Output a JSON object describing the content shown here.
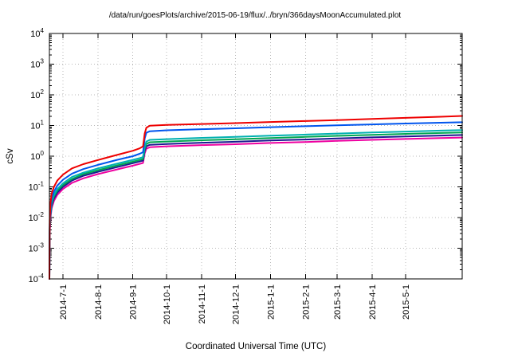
{
  "chart_data": {
    "type": "line",
    "title": "/data/run/goesPlots/archive/2015-06-19/flux/../bryn/366daysMoonAccumulated.plot",
    "xlabel": "Coordinated Universal Time (UTC)",
    "ylabel": "cSv",
    "y_scale": "log10",
    "ylim": [
      0.0001,
      10000
    ],
    "y_tick_exponents": [
      -4,
      -3,
      -2,
      -1,
      0,
      1,
      2,
      3,
      4
    ],
    "x_range_days": [
      0,
      366
    ],
    "grid": true,
    "legend_position": "none",
    "colors": {
      "grid": "#b8b8b8",
      "axis": "#000000",
      "background": "#ffffff"
    },
    "x_ticks": [
      {
        "label": "2014-7-1",
        "day": 12
      },
      {
        "label": "2014-8-1",
        "day": 43
      },
      {
        "label": "2014-9-1",
        "day": 74
      },
      {
        "label": "2014-10-1",
        "day": 104
      },
      {
        "label": "2014-11-1",
        "day": 135
      },
      {
        "label": "2014-12-1",
        "day": 165
      },
      {
        "label": "2015-1-1",
        "day": 196
      },
      {
        "label": "2015-2-1",
        "day": 227
      },
      {
        "label": "2015-3-1",
        "day": 255
      },
      {
        "label": "2015-4-1",
        "day": 286
      },
      {
        "label": "2015-5-1",
        "day": 316
      }
    ],
    "series": [
      {
        "name": "red",
        "color": "#ee0000",
        "points": [
          [
            0,
            0.0001
          ],
          [
            0.3,
            0.008
          ],
          [
            1,
            0.03
          ],
          [
            2,
            0.06
          ],
          [
            4,
            0.1
          ],
          [
            7,
            0.16
          ],
          [
            12,
            0.25
          ],
          [
            20,
            0.4
          ],
          [
            30,
            0.55
          ],
          [
            43,
            0.75
          ],
          [
            60,
            1.1
          ],
          [
            74,
            1.5
          ],
          [
            80,
            1.8
          ],
          [
            83,
            2.1
          ],
          [
            84.5,
            5.5
          ],
          [
            86,
            8.5
          ],
          [
            89,
            9.8
          ],
          [
            104,
            10.4
          ],
          [
            135,
            11.2
          ],
          [
            165,
            12.0
          ],
          [
            196,
            13.0
          ],
          [
            227,
            14.0
          ],
          [
            255,
            15.0
          ],
          [
            286,
            16.3
          ],
          [
            316,
            17.8
          ],
          [
            347,
            19.3
          ],
          [
            366,
            20.5
          ]
        ]
      },
      {
        "name": "blue",
        "color": "#0055ee",
        "points": [
          [
            0,
            0.0001
          ],
          [
            0.3,
            0.006
          ],
          [
            1,
            0.02
          ],
          [
            2,
            0.042
          ],
          [
            4,
            0.07
          ],
          [
            7,
            0.11
          ],
          [
            12,
            0.17
          ],
          [
            20,
            0.27
          ],
          [
            30,
            0.38
          ],
          [
            43,
            0.52
          ],
          [
            60,
            0.76
          ],
          [
            74,
            1.0
          ],
          [
            80,
            1.2
          ],
          [
            83,
            1.35
          ],
          [
            84.5,
            3.8
          ],
          [
            86,
            5.8
          ],
          [
            89,
            6.5
          ],
          [
            104,
            7.0
          ],
          [
            135,
            7.6
          ],
          [
            165,
            8.1
          ],
          [
            196,
            8.8
          ],
          [
            227,
            9.5
          ],
          [
            255,
            10.1
          ],
          [
            286,
            10.9
          ],
          [
            316,
            11.6
          ],
          [
            347,
            12.3
          ],
          [
            366,
            12.8
          ]
        ]
      },
      {
        "name": "cyan",
        "color": "#00b0b0",
        "points": [
          [
            0,
            0.0001
          ],
          [
            0.3,
            0.005
          ],
          [
            1,
            0.016
          ],
          [
            2,
            0.032
          ],
          [
            4,
            0.055
          ],
          [
            7,
            0.085
          ],
          [
            12,
            0.13
          ],
          [
            20,
            0.21
          ],
          [
            30,
            0.29
          ],
          [
            43,
            0.4
          ],
          [
            60,
            0.57
          ],
          [
            74,
            0.76
          ],
          [
            80,
            0.86
          ],
          [
            83,
            0.93
          ],
          [
            84.5,
            2.1
          ],
          [
            86,
            3.0
          ],
          [
            89,
            3.4
          ],
          [
            104,
            3.6
          ],
          [
            135,
            3.95
          ],
          [
            165,
            4.25
          ],
          [
            196,
            4.65
          ],
          [
            227,
            5.05
          ],
          [
            255,
            5.45
          ],
          [
            286,
            5.9
          ],
          [
            316,
            6.35
          ],
          [
            347,
            6.8
          ],
          [
            366,
            7.1
          ]
        ]
      },
      {
        "name": "green",
        "color": "#00a550",
        "points": [
          [
            0,
            0.0001
          ],
          [
            0.3,
            0.0045
          ],
          [
            1,
            0.014
          ],
          [
            2,
            0.028
          ],
          [
            4,
            0.048
          ],
          [
            7,
            0.075
          ],
          [
            12,
            0.115
          ],
          [
            20,
            0.18
          ],
          [
            30,
            0.26
          ],
          [
            43,
            0.35
          ],
          [
            60,
            0.5
          ],
          [
            74,
            0.66
          ],
          [
            80,
            0.75
          ],
          [
            83,
            0.81
          ],
          [
            84.5,
            1.75
          ],
          [
            86,
            2.5
          ],
          [
            89,
            2.85
          ],
          [
            104,
            3.0
          ],
          [
            135,
            3.3
          ],
          [
            165,
            3.55
          ],
          [
            196,
            3.9
          ],
          [
            227,
            4.25
          ],
          [
            255,
            4.6
          ],
          [
            286,
            4.95
          ],
          [
            316,
            5.35
          ],
          [
            347,
            5.7
          ],
          [
            366,
            5.95
          ]
        ]
      },
      {
        "name": "navy",
        "color": "#1a1a90",
        "points": [
          [
            0,
            0.0001
          ],
          [
            0.3,
            0.004
          ],
          [
            1,
            0.012
          ],
          [
            2,
            0.024
          ],
          [
            4,
            0.042
          ],
          [
            7,
            0.065
          ],
          [
            12,
            0.1
          ],
          [
            20,
            0.16
          ],
          [
            30,
            0.23
          ],
          [
            43,
            0.31
          ],
          [
            60,
            0.44
          ],
          [
            74,
            0.59
          ],
          [
            80,
            0.67
          ],
          [
            83,
            0.72
          ],
          [
            84.5,
            1.5
          ],
          [
            86,
            2.1
          ],
          [
            89,
            2.35
          ],
          [
            104,
            2.5
          ],
          [
            135,
            2.75
          ],
          [
            165,
            2.95
          ],
          [
            196,
            3.25
          ],
          [
            227,
            3.5
          ],
          [
            255,
            3.8
          ],
          [
            286,
            4.1
          ],
          [
            316,
            4.4
          ],
          [
            347,
            4.7
          ],
          [
            366,
            4.9
          ]
        ]
      },
      {
        "name": "magenta",
        "color": "#ee00a0",
        "points": [
          [
            0,
            0.0001
          ],
          [
            0.3,
            0.0035
          ],
          [
            1,
            0.01
          ],
          [
            2,
            0.02
          ],
          [
            4,
            0.035
          ],
          [
            7,
            0.055
          ],
          [
            12,
            0.085
          ],
          [
            20,
            0.135
          ],
          [
            30,
            0.19
          ],
          [
            43,
            0.26
          ],
          [
            60,
            0.37
          ],
          [
            74,
            0.49
          ],
          [
            80,
            0.56
          ],
          [
            83,
            0.6
          ],
          [
            84.5,
            1.25
          ],
          [
            86,
            1.75
          ],
          [
            89,
            1.95
          ],
          [
            104,
            2.1
          ],
          [
            135,
            2.3
          ],
          [
            165,
            2.45
          ],
          [
            196,
            2.7
          ],
          [
            227,
            2.9
          ],
          [
            255,
            3.15
          ],
          [
            286,
            3.4
          ],
          [
            316,
            3.65
          ],
          [
            347,
            3.9
          ],
          [
            366,
            4.05
          ]
        ]
      }
    ]
  }
}
